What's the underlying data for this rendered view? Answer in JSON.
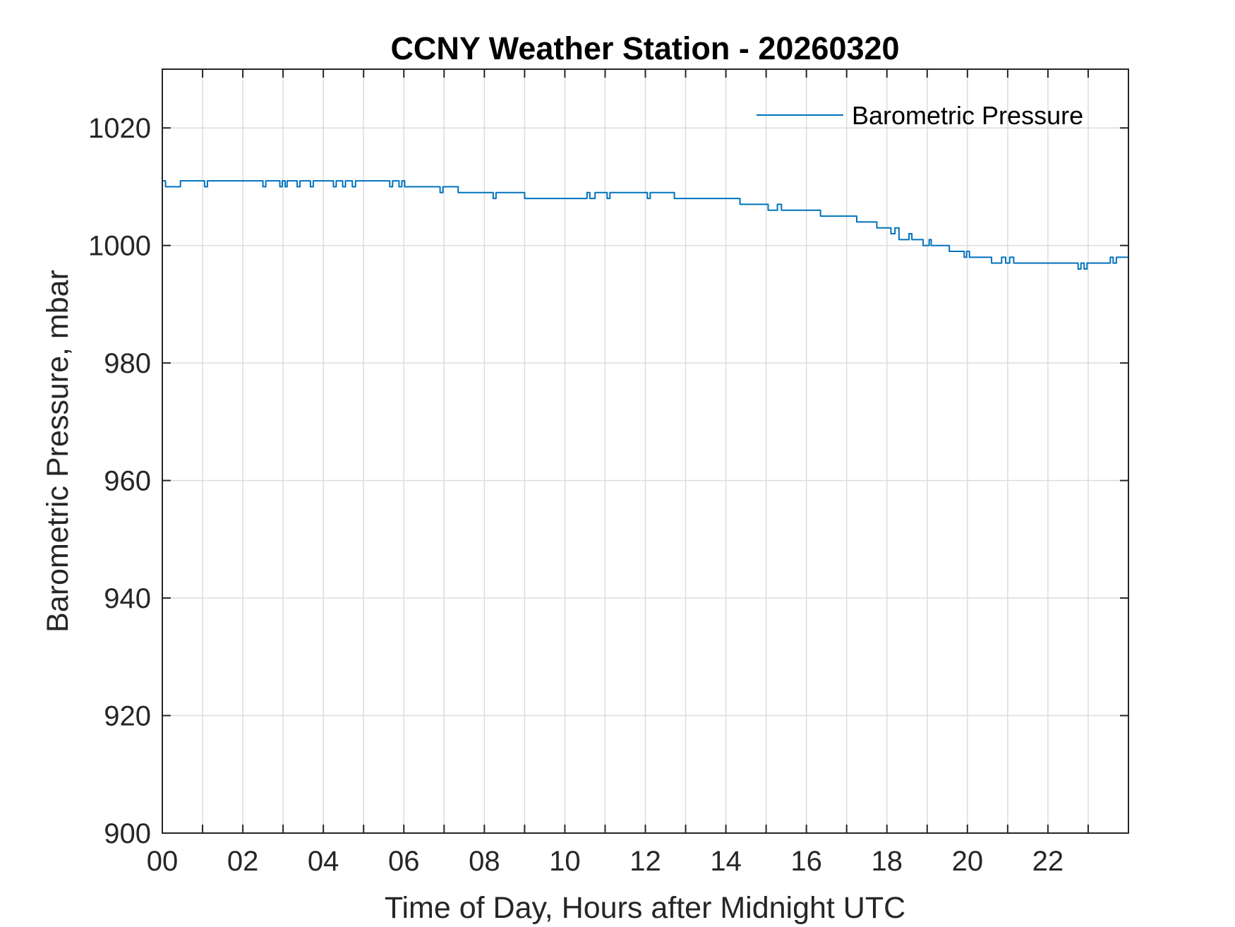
{
  "chart_data": {
    "type": "line",
    "title": "CCNY Weather Station - 20260320",
    "xlabel": "Time of Day, Hours after Midnight UTC",
    "ylabel": "Barometric Pressure, mbar",
    "xlim": [
      0,
      24
    ],
    "ylim": [
      900,
      1030
    ],
    "xticks": [
      0,
      2,
      4,
      6,
      8,
      10,
      12,
      14,
      16,
      18,
      20,
      22
    ],
    "xtick_labels": [
      "00",
      "02",
      "04",
      "06",
      "08",
      "10",
      "12",
      "14",
      "16",
      "18",
      "20",
      "22"
    ],
    "yticks": [
      900,
      920,
      940,
      960,
      980,
      1000,
      1020
    ],
    "ytick_labels": [
      "900",
      "920",
      "940",
      "960",
      "980",
      "1000",
      "1020"
    ],
    "grid": true,
    "legend_position": "top-right",
    "series": [
      {
        "name": "Barometric Pressure",
        "color": "#0072BD",
        "x": [
          0,
          0.08,
          0.08,
          0.45,
          0.45,
          1.05,
          1.05,
          1.12,
          1.12,
          2.5,
          2.5,
          2.57,
          2.57,
          2.92,
          2.92,
          2.98,
          2.98,
          3.05,
          3.05,
          3.1,
          3.1,
          3.35,
          3.35,
          3.42,
          3.42,
          3.68,
          3.68,
          3.75,
          3.75,
          4.25,
          4.25,
          4.32,
          4.32,
          4.48,
          4.48,
          4.55,
          4.55,
          4.72,
          4.72,
          4.8,
          4.8,
          5.65,
          5.65,
          5.72,
          5.72,
          5.88,
          5.88,
          5.95,
          5.95,
          6.02,
          6.02,
          6.08,
          6.08,
          6.9,
          6.9,
          6.97,
          6.97,
          7.35,
          7.35,
          8.22,
          8.22,
          8.29,
          8.29,
          9.0,
          9.0,
          10.55,
          10.55,
          10.62,
          10.62,
          10.75,
          10.75,
          10.82,
          10.82,
          11.05,
          11.05,
          11.12,
          11.12,
          12.05,
          12.05,
          12.12,
          12.12,
          12.72,
          12.72,
          12.8,
          12.8,
          14.35,
          14.35,
          15.05,
          15.05,
          15.28,
          15.28,
          15.38,
          15.38,
          16.35,
          16.35,
          17.25,
          17.25,
          17.75,
          17.75,
          18.1,
          18.1,
          18.2,
          18.2,
          18.3,
          18.3,
          18.55,
          18.55,
          18.62,
          18.62,
          18.9,
          18.9,
          19.05,
          19.05,
          19.1,
          19.1,
          19.55,
          19.55,
          19.92,
          19.92,
          19.98,
          19.98,
          20.05,
          20.05,
          20.6,
          20.6,
          20.85,
          20.85,
          20.95,
          20.95,
          21.05,
          21.05,
          21.15,
          21.15,
          22.75,
          22.75,
          22.82,
          22.82,
          22.9,
          22.9,
          22.97,
          22.97,
          23.55,
          23.55,
          23.62,
          23.62,
          23.7,
          23.7,
          24
        ],
        "values": [
          1011,
          1011,
          1010,
          1010,
          1011,
          1011,
          1010,
          1010,
          1011,
          1011,
          1010,
          1010,
          1011,
          1011,
          1010,
          1010,
          1011,
          1011,
          1010,
          1010,
          1011,
          1011,
          1010,
          1010,
          1011,
          1011,
          1010,
          1010,
          1011,
          1011,
          1010,
          1010,
          1011,
          1011,
          1010,
          1010,
          1011,
          1011,
          1010,
          1010,
          1011,
          1011,
          1010,
          1010,
          1011,
          1011,
          1010,
          1010,
          1011,
          1011,
          1010,
          1010,
          1010,
          1010,
          1009,
          1009,
          1010,
          1010,
          1009,
          1009,
          1008,
          1008,
          1009,
          1009,
          1008,
          1008,
          1009,
          1009,
          1008,
          1008,
          1009,
          1009,
          1009,
          1009,
          1008,
          1008,
          1009,
          1009,
          1008,
          1008,
          1009,
          1009,
          1008,
          1008,
          1008,
          1008,
          1007,
          1007,
          1006,
          1006,
          1007,
          1007,
          1006,
          1006,
          1005,
          1005,
          1004,
          1004,
          1003,
          1003,
          1002,
          1002,
          1003,
          1003,
          1001,
          1001,
          1002,
          1002,
          1001,
          1001,
          1000,
          1000,
          1001,
          1001,
          1000,
          1000,
          999,
          999,
          998,
          998,
          999,
          999,
          998,
          998,
          997,
          997,
          998,
          998,
          997,
          997,
          998,
          998,
          997,
          997,
          996,
          996,
          997,
          997,
          996,
          996,
          997,
          997,
          998,
          998,
          997,
          997,
          998,
          998
        ]
      }
    ]
  }
}
